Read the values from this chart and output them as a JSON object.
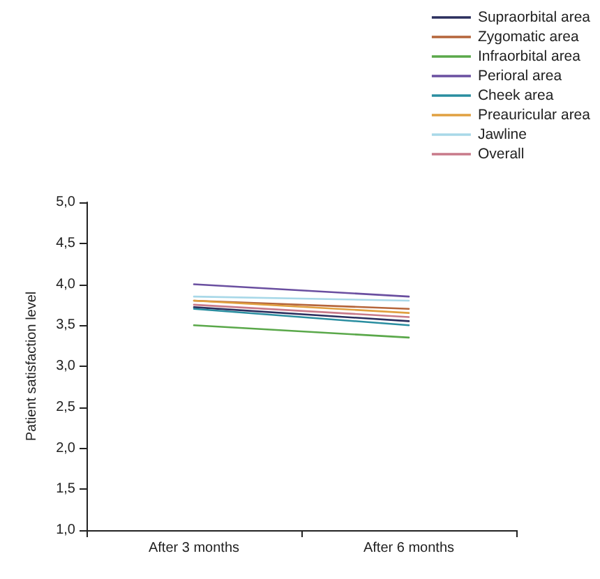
{
  "chart_data": {
    "type": "line",
    "ylabel": "Patient satisfaction level",
    "categories": [
      "After 3 months",
      "After 6 months"
    ],
    "series": [
      {
        "name": "Supraorbital area",
        "color": "#2b2f5e",
        "values": [
          3.72,
          3.55
        ]
      },
      {
        "name": "Zygomatic area",
        "color": "#b5653a",
        "values": [
          3.8,
          3.7
        ]
      },
      {
        "name": "Infraorbital area",
        "color": "#5aa84a",
        "values": [
          3.5,
          3.35
        ]
      },
      {
        "name": "Perioral area",
        "color": "#6a4fa0",
        "values": [
          4.0,
          3.85
        ]
      },
      {
        "name": "Cheek area",
        "color": "#2a8ea0",
        "values": [
          3.7,
          3.5
        ]
      },
      {
        "name": "Preauricular area",
        "color": "#e0a040",
        "values": [
          3.8,
          3.65
        ]
      },
      {
        "name": "Jawline",
        "color": "#a8d8e8",
        "values": [
          3.85,
          3.8
        ]
      },
      {
        "name": "Overall",
        "color": "#c87a8a",
        "values": [
          3.75,
          3.6
        ]
      }
    ],
    "ylim": [
      1,
      5
    ],
    "yticks": [
      {
        "value": 1,
        "label": "1,0"
      },
      {
        "value": 1.5,
        "label": "1,5"
      },
      {
        "value": 2,
        "label": "2,0"
      },
      {
        "value": 2.5,
        "label": "2,5"
      },
      {
        "value": 3,
        "label": "3,0"
      },
      {
        "value": 3.5,
        "label": "3,5"
      },
      {
        "value": 4,
        "label": "4,0"
      },
      {
        "value": 4.5,
        "label": "4,5"
      },
      {
        "value": 5,
        "label": "5,0"
      }
    ],
    "legend": "top right",
    "grid": false,
    "marker": "none",
    "line_style": "solid"
  }
}
